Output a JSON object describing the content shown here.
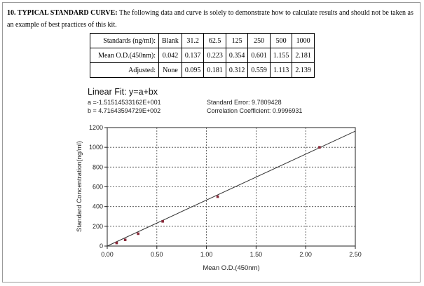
{
  "heading": {
    "label": "10. TYPICAL STANDARD CURVE:",
    "text": "The following data and curve is solely to demonstrate how to calculate results and should not be taken as an example of best practices of this kit."
  },
  "table": {
    "rows": [
      {
        "header": "Standards (ng/ml):",
        "cells": [
          "Blank",
          "31.2",
          "62.5",
          "125",
          "250",
          "500",
          "1000"
        ]
      },
      {
        "header": "Mean O.D.(450nm):",
        "cells": [
          "0.042",
          "0.137",
          "0.223",
          "0.354",
          "0.601",
          "1.155",
          "2.181"
        ]
      },
      {
        "header": "Adjusted:",
        "cells": [
          "None",
          "0.095",
          "0.181",
          "0.312",
          "0.559",
          "1.113",
          "2.139"
        ]
      }
    ]
  },
  "fit": {
    "title": "Linear Fit: y=a+bx",
    "a": "a =-1.51514533162E+001",
    "b": "b = 4.71643594729E+002",
    "stderr": "Standard Error: 9.7809428",
    "corr": "Correlation Coefficient: 0.9996931"
  },
  "chart_data": {
    "type": "scatter",
    "xlabel": "Mean O.D.(450nm)",
    "ylabel": "Standard Concentration(ng/ml)",
    "xlim": [
      0,
      2.5
    ],
    "ylim": [
      0,
      1200
    ],
    "x_ticks": [
      "0.00",
      "0.50",
      "1.00",
      "1.50",
      "2.00",
      "2.50"
    ],
    "y_ticks": [
      "0",
      "200",
      "400",
      "600",
      "800",
      "1000",
      "1200"
    ],
    "grid": true,
    "series": [
      {
        "x": [
          0.095,
          0.181,
          0.312,
          0.559,
          1.113,
          2.139
        ],
        "y": [
          31.2,
          62.5,
          125,
          250,
          500,
          1000
        ]
      }
    ],
    "fit_line": {
      "a": -15.1514533162,
      "b": 471.643594729,
      "x_range": [
        0,
        2.5
      ]
    }
  }
}
